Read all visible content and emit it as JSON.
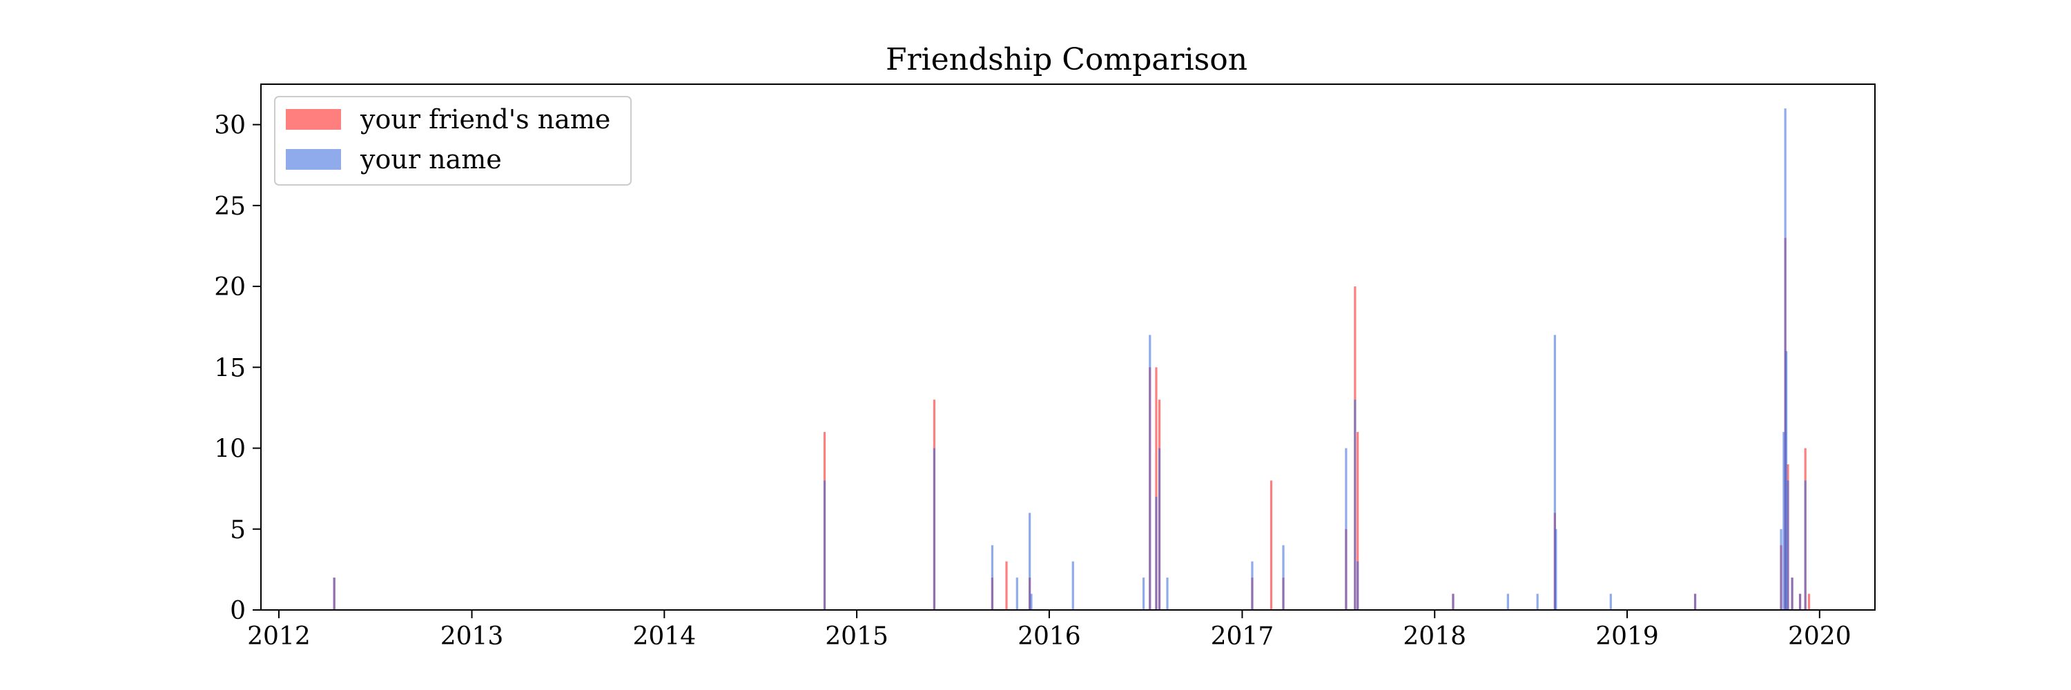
{
  "chart_data": {
    "type": "bar",
    "title": "Friendship Comparison",
    "xlabel": "",
    "ylabel": "",
    "x_axis": {
      "type": "time",
      "range": [
        "2011-11-28",
        "2020-04-15"
      ],
      "ticks": [
        "2012",
        "2013",
        "2014",
        "2015",
        "2016",
        "2017",
        "2018",
        "2019",
        "2020"
      ]
    },
    "y_axis": {
      "range": [
        0,
        32.5
      ],
      "ticks": [
        "0",
        "5",
        "10",
        "15",
        "20",
        "25",
        "30"
      ]
    },
    "grid": false,
    "legend_position": "top-left",
    "series": [
      {
        "name": "your friend's name",
        "color": "#ff0000",
        "opacity": 0.5,
        "points": [
          {
            "x": "2012-04-15",
            "y": 2
          },
          {
            "x": "2014-11-01",
            "y": 11
          },
          {
            "x": "2015-05-28",
            "y": 13
          },
          {
            "x": "2015-09-15",
            "y": 2
          },
          {
            "x": "2015-10-12",
            "y": 3
          },
          {
            "x": "2015-11-25",
            "y": 2
          },
          {
            "x": "2016-07-10",
            "y": 15
          },
          {
            "x": "2016-07-22",
            "y": 15
          },
          {
            "x": "2016-07-28",
            "y": 13
          },
          {
            "x": "2017-01-20",
            "y": 2
          },
          {
            "x": "2017-02-25",
            "y": 8
          },
          {
            "x": "2017-03-20",
            "y": 2
          },
          {
            "x": "2017-07-17",
            "y": 5
          },
          {
            "x": "2017-08-03",
            "y": 20
          },
          {
            "x": "2017-08-08",
            "y": 11
          },
          {
            "x": "2018-02-05",
            "y": 1
          },
          {
            "x": "2018-08-17",
            "y": 6
          },
          {
            "x": "2019-05-10",
            "y": 1
          },
          {
            "x": "2019-10-20",
            "y": 4
          },
          {
            "x": "2019-10-28",
            "y": 23
          },
          {
            "x": "2019-11-02",
            "y": 9
          },
          {
            "x": "2019-11-10",
            "y": 2
          },
          {
            "x": "2019-11-25",
            "y": 1
          },
          {
            "x": "2019-12-05",
            "y": 10
          },
          {
            "x": "2019-12-12",
            "y": 1
          }
        ]
      },
      {
        "name": "your name",
        "color": "#3366dd",
        "opacity": 0.55,
        "points": [
          {
            "x": "2012-04-15",
            "y": 2
          },
          {
            "x": "2014-11-01",
            "y": 8
          },
          {
            "x": "2015-05-28",
            "y": 10
          },
          {
            "x": "2015-09-15",
            "y": 4
          },
          {
            "x": "2015-11-01",
            "y": 2
          },
          {
            "x": "2015-11-25",
            "y": 6
          },
          {
            "x": "2015-11-28",
            "y": 1
          },
          {
            "x": "2016-02-15",
            "y": 3
          },
          {
            "x": "2016-06-28",
            "y": 2
          },
          {
            "x": "2016-07-10",
            "y": 17
          },
          {
            "x": "2016-07-22",
            "y": 7
          },
          {
            "x": "2016-07-28",
            "y": 10
          },
          {
            "x": "2016-08-12",
            "y": 2
          },
          {
            "x": "2017-01-20",
            "y": 3
          },
          {
            "x": "2017-03-20",
            "y": 4
          },
          {
            "x": "2017-07-17",
            "y": 10
          },
          {
            "x": "2017-08-03",
            "y": 13
          },
          {
            "x": "2017-08-08",
            "y": 3
          },
          {
            "x": "2018-02-05",
            "y": 1
          },
          {
            "x": "2018-05-20",
            "y": 1
          },
          {
            "x": "2018-07-15",
            "y": 1
          },
          {
            "x": "2018-08-17",
            "y": 17
          },
          {
            "x": "2018-08-19",
            "y": 5
          },
          {
            "x": "2018-12-01",
            "y": 1
          },
          {
            "x": "2019-05-10",
            "y": 1
          },
          {
            "x": "2019-10-20",
            "y": 5
          },
          {
            "x": "2019-10-25",
            "y": 11
          },
          {
            "x": "2019-10-28",
            "y": 31
          },
          {
            "x": "2019-10-30",
            "y": 16
          },
          {
            "x": "2019-11-02",
            "y": 8
          },
          {
            "x": "2019-11-10",
            "y": 2
          },
          {
            "x": "2019-11-25",
            "y": 1
          },
          {
            "x": "2019-12-05",
            "y": 8
          }
        ]
      }
    ]
  }
}
